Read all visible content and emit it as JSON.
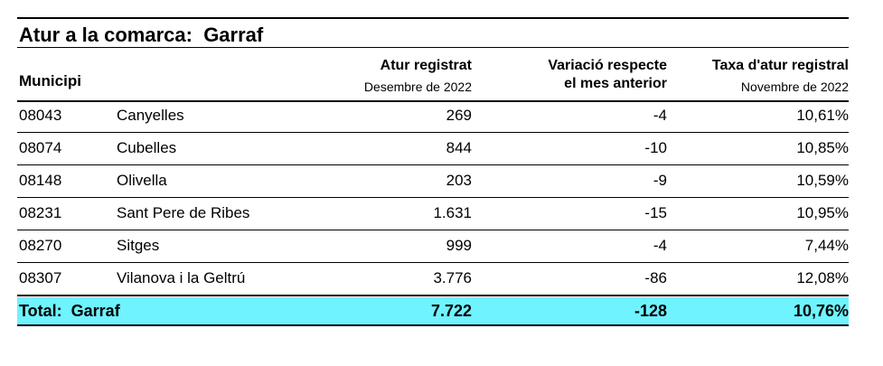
{
  "title": "Atur a la comarca:  Garraf",
  "table": {
    "header": {
      "municipi": "Municipi",
      "atur": "Atur registrat",
      "atur_sub": "Desembre de 2022",
      "variacio": [
        "Variació respecte",
        "el mes anterior"
      ],
      "taxa": "Taxa d'atur registral",
      "taxa_sub": "Novembre de 2022"
    },
    "rows": [
      [
        "08043",
        "Canyelles",
        "269",
        "-4",
        "10,61%"
      ],
      [
        "08074",
        "Cubelles",
        "844",
        "-10",
        "10,85%"
      ],
      [
        "08148",
        "Olivella",
        "203",
        "-9",
        "10,59%"
      ],
      [
        "08231",
        "Sant Pere de Ribes",
        "1.631",
        "-15",
        "10,95%"
      ],
      [
        "08270",
        "Sitges",
        "999",
        "-4",
        "7,44%"
      ],
      [
        "08307",
        "Vilanova i la Geltrú",
        "3.776",
        "-86",
        "12,08%"
      ]
    ],
    "total": [
      "Total:  Garraf",
      "7.722",
      "-128",
      "10,76%"
    ]
  }
}
